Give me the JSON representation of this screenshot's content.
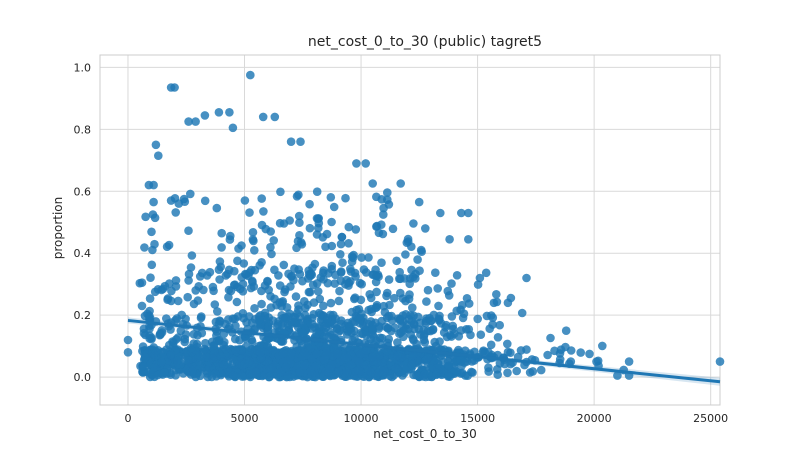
{
  "chart_data": {
    "type": "scatter",
    "title": "net_cost_0_to_30 (public) tagret5",
    "xlabel": "net_cost_0_to_30",
    "ylabel": "proportion",
    "xlim": [
      -1200,
      25400
    ],
    "ylim": [
      -0.09,
      1.04
    ],
    "xticks": [
      0,
      5000,
      10000,
      15000,
      20000,
      25000
    ],
    "yticks": [
      0.0,
      0.2,
      0.4,
      0.6,
      0.8,
      1.0
    ],
    "xtick_labels": [
      "0",
      "5000",
      "10000",
      "15000",
      "20000",
      "25000"
    ],
    "ytick_labels": [
      "0.0",
      "0.2",
      "0.4",
      "0.6",
      "0.8",
      "1.0"
    ],
    "grid": true,
    "point_color": "#1f77b4",
    "regression_line": {
      "x": [
        0,
        25400
      ],
      "y": [
        0.183,
        -0.015
      ]
    },
    "highlighted_points": [
      {
        "x": 1850,
        "y": 0.935
      },
      {
        "x": 2000,
        "y": 0.935
      },
      {
        "x": 5250,
        "y": 0.975
      },
      {
        "x": 2600,
        "y": 0.825
      },
      {
        "x": 2900,
        "y": 0.825
      },
      {
        "x": 3300,
        "y": 0.845
      },
      {
        "x": 3900,
        "y": 0.855
      },
      {
        "x": 4350,
        "y": 0.855
      },
      {
        "x": 4500,
        "y": 0.805
      },
      {
        "x": 5800,
        "y": 0.84
      },
      {
        "x": 6300,
        "y": 0.84
      },
      {
        "x": 1200,
        "y": 0.75
      },
      {
        "x": 1300,
        "y": 0.715
      },
      {
        "x": 7000,
        "y": 0.76
      },
      {
        "x": 7400,
        "y": 0.76
      },
      {
        "x": 900,
        "y": 0.62
      },
      {
        "x": 1100,
        "y": 0.62
      },
      {
        "x": 1100,
        "y": 0.565
      },
      {
        "x": 1850,
        "y": 0.57
      },
      {
        "x": 9800,
        "y": 0.69
      },
      {
        "x": 10200,
        "y": 0.69
      },
      {
        "x": 10500,
        "y": 0.625
      },
      {
        "x": 11700,
        "y": 0.625
      },
      {
        "x": 13400,
        "y": 0.53
      },
      {
        "x": 14300,
        "y": 0.53
      },
      {
        "x": 14600,
        "y": 0.53
      },
      {
        "x": 13800,
        "y": 0.445
      },
      {
        "x": 14600,
        "y": 0.445
      },
      {
        "x": 12600,
        "y": 0.405
      },
      {
        "x": 15100,
        "y": 0.32
      },
      {
        "x": 17100,
        "y": 0.32
      },
      {
        "x": 0,
        "y": 0.12
      },
      {
        "x": 0,
        "y": 0.08
      },
      {
        "x": 600,
        "y": 0.305
      },
      {
        "x": 600,
        "y": 0.23
      },
      {
        "x": 1200,
        "y": 0.18
      },
      {
        "x": 1700,
        "y": 0.25
      },
      {
        "x": 16300,
        "y": 0.24
      },
      {
        "x": 15700,
        "y": 0.24
      },
      {
        "x": 18800,
        "y": 0.15
      },
      {
        "x": 19800,
        "y": 0.075
      },
      {
        "x": 20100,
        "y": 0.05
      },
      {
        "x": 21500,
        "y": 0.05
      },
      {
        "x": 21000,
        "y": 0.005
      },
      {
        "x": 21500,
        "y": 0.005
      },
      {
        "x": 25400,
        "y": 0.05
      },
      {
        "x": 18300,
        "y": 0.085
      },
      {
        "x": 19000,
        "y": 0.05
      }
    ],
    "generated_cloud": {
      "note": "dense point cloud rendered procedurally from these distribution parameters (data units)",
      "seed": 12345,
      "count": 2300,
      "x_center": 8000,
      "x_spread": 3800,
      "x_min": 500,
      "x_max": 22000
    }
  }
}
